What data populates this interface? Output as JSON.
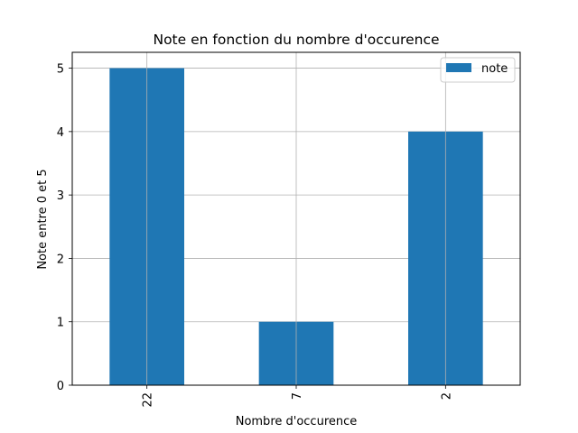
{
  "chart_data": {
    "type": "bar",
    "title": "Note en fonction du nombre d'occurence",
    "xlabel": "Nombre d'occurence",
    "ylabel": "Note entre 0 et 5",
    "categories": [
      "22",
      "7",
      "2"
    ],
    "series": [
      {
        "name": "note",
        "values": [
          5,
          1,
          4
        ],
        "color": "#1f77b4"
      }
    ],
    "ylim": [
      0,
      5.25
    ],
    "yticks": [
      0,
      1,
      2,
      3,
      4,
      5
    ],
    "grid": true,
    "legend_position": "top-right"
  }
}
